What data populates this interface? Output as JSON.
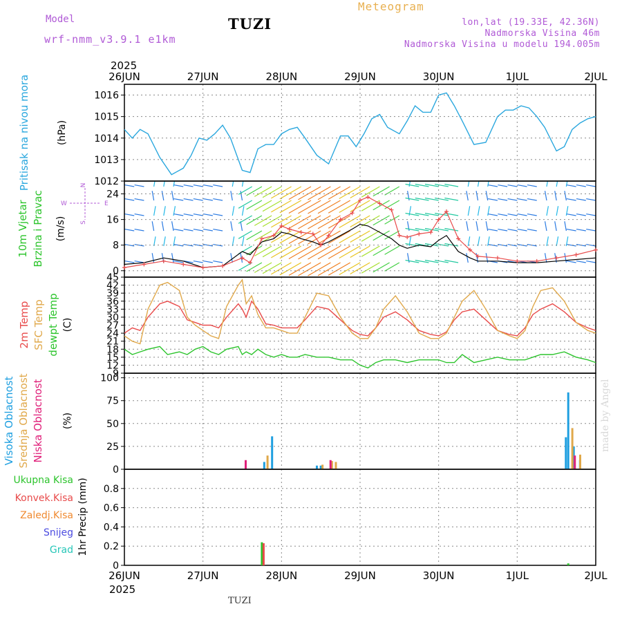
{
  "header": {
    "model_label": "Model",
    "model_name": "wrf-nmm_v3.9.1 e1km",
    "station": "TUZI",
    "app_title": "Meteogram",
    "lonlat": "lon,lat (19.33E, 42.36N)",
    "altitude": "Nadmorska Visina 46m",
    "model_altitude": "Nadmorska Visina u modelu 194.005m"
  },
  "footer": {
    "station": "TUZI",
    "made_by": "made by Angel"
  },
  "time_axis": {
    "year": "2025",
    "labels": [
      "26JUN",
      "27JUN",
      "28JUN",
      "29JUN",
      "30JUN",
      "1JUL",
      "2JUL"
    ]
  },
  "colors": {
    "pressure": "#2aa7de",
    "temp2m": "#e84a4a",
    "sfc": "#e0a84a",
    "dewpt": "#2cc42c",
    "high_cloud": "#1e9fe0",
    "mid_cloud": "#e0a84a",
    "low_cloud": "#e0207a",
    "total_precip": "#2cc42c",
    "conv_precip": "#e84a4a",
    "frozen_precip": "#f08a30",
    "snow": "#4a4ae0",
    "hail": "#26c6b8",
    "wind_label": "#2cc42c",
    "wind_unit": "#b05ad6"
  },
  "chart_data": [
    {
      "type": "line",
      "panel": "pressure",
      "ylabel_color_text": "Pritisak na nivou mora",
      "unit": "(hPa)",
      "ylim": [
        1012,
        1016.5
      ],
      "yticks": [
        1012,
        1013,
        1014,
        1015,
        1016
      ],
      "x_days": [
        0,
        0.1,
        0.2,
        0.3,
        0.45,
        0.6,
        0.75,
        0.85,
        0.95,
        1.05,
        1.15,
        1.25,
        1.35,
        1.5,
        1.6,
        1.7,
        1.8,
        1.9,
        2.0,
        2.1,
        2.2,
        2.3,
        2.45,
        2.6,
        2.75,
        2.85,
        2.95,
        3.05,
        3.15,
        3.25,
        3.35,
        3.5,
        3.6,
        3.7,
        3.8,
        3.9,
        4.0,
        4.1,
        4.2,
        4.3,
        4.45,
        4.6,
        4.75,
        4.85,
        4.95,
        5.05,
        5.15,
        5.25,
        5.35,
        5.5,
        5.6,
        5.7,
        5.8,
        5.9,
        6.0
      ],
      "series": [
        {
          "values": [
            1014.4,
            1014.0,
            1014.4,
            1014.2,
            1013.1,
            1012.3,
            1012.6,
            1013.2,
            1014.0,
            1013.9,
            1014.2,
            1014.6,
            1014.0,
            1012.5,
            1012.4,
            1013.5,
            1013.7,
            1013.7,
            1014.2,
            1014.4,
            1014.5,
            1014.0,
            1013.2,
            1012.8,
            1014.1,
            1014.1,
            1013.6,
            1014.2,
            1014.9,
            1015.1,
            1014.5,
            1014.2,
            1014.8,
            1015.5,
            1015.2,
            1015.2,
            1016.0,
            1016.1,
            1015.5,
            1014.8,
            1013.7,
            1013.8,
            1015.0,
            1015.3,
            1015.3,
            1015.5,
            1015.4,
            1015.0,
            1014.5,
            1013.4,
            1013.6,
            1014.4,
            1014.7,
            1014.9,
            1015.0
          ]
        }
      ]
    },
    {
      "type": "line",
      "panel": "wind",
      "ylabel_lines": [
        "10m Vjetar",
        "Brzina i Pravac"
      ],
      "unit": "(m/s)",
      "compass": [
        "N",
        "W",
        "E",
        "S"
      ],
      "ylim": [
        -2,
        28
      ],
      "yticks": [
        0,
        8,
        16,
        24
      ],
      "x_days": [
        0,
        0.25,
        0.5,
        0.75,
        1.0,
        1.25,
        1.5,
        1.6,
        1.75,
        1.9,
        2.0,
        2.1,
        2.25,
        2.4,
        2.5,
        2.6,
        2.75,
        2.9,
        3.0,
        3.1,
        3.25,
        3.4,
        3.5,
        3.6,
        3.75,
        3.9,
        4.0,
        4.1,
        4.25,
        4.4,
        4.5,
        4.75,
        5.0,
        5.25,
        5.5,
        5.75,
        6.0
      ],
      "series": [
        {
          "name": "speed",
          "color": "#000000",
          "values": [
            2.0,
            2.5,
            4.0,
            3.0,
            1.0,
            1.5,
            6.0,
            5.0,
            9.0,
            10.0,
            12.0,
            11.5,
            10.0,
            9.0,
            8.0,
            9.0,
            11.0,
            13.0,
            14.5,
            14.0,
            12.0,
            10.0,
            8.0,
            7.0,
            8.0,
            7.5,
            9.5,
            11.0,
            6.0,
            4.0,
            3.0,
            3.0,
            2.5,
            2.5,
            3.0,
            3.5,
            4.0
          ]
        },
        {
          "name": "gust",
          "color": "#e84a4a",
          "values": [
            1.0,
            2.0,
            3.0,
            2.0,
            1.0,
            1.5,
            4.0,
            2.5,
            10.0,
            11.0,
            14.0,
            13.0,
            12.0,
            11.5,
            8.0,
            11.0,
            16.0,
            18.0,
            22.0,
            23.0,
            21.0,
            19.0,
            11.0,
            10.5,
            11.5,
            12.0,
            16.0,
            18.5,
            10.0,
            6.5,
            4.5,
            4.0,
            3.0,
            3.0,
            4.0,
            5.0,
            6.5
          ]
        }
      ]
    },
    {
      "type": "line",
      "panel": "temperature",
      "ylabel_lines": [
        "2m Temp",
        "SFC Temp",
        "dewpt Temp"
      ],
      "unit": "(C)",
      "ylim": [
        9,
        45
      ],
      "yticks": [
        9,
        12,
        15,
        18,
        21,
        24,
        27,
        30,
        33,
        36,
        39,
        42,
        45
      ],
      "x_days": [
        0,
        0.1,
        0.2,
        0.3,
        0.45,
        0.55,
        0.7,
        0.8,
        0.9,
        1.0,
        1.1,
        1.2,
        1.3,
        1.45,
        1.5,
        1.55,
        1.62,
        1.7,
        1.8,
        1.9,
        2.0,
        2.1,
        2.2,
        2.3,
        2.45,
        2.6,
        2.75,
        2.9,
        3.0,
        3.1,
        3.2,
        3.3,
        3.45,
        3.6,
        3.75,
        3.9,
        4.0,
        4.1,
        4.2,
        4.3,
        4.45,
        4.6,
        4.75,
        4.9,
        5.0,
        5.1,
        5.2,
        5.3,
        5.45,
        5.6,
        5.75,
        5.9,
        6.0
      ],
      "series": [
        {
          "name": "2m Temp",
          "color": "#e84a4a",
          "values": [
            24,
            26,
            25,
            30,
            35,
            36,
            34,
            29,
            28,
            27,
            27,
            26,
            30,
            35,
            33,
            30,
            36,
            33,
            27.5,
            27,
            26,
            26,
            26,
            29,
            34,
            33,
            29,
            25,
            23.5,
            23,
            26,
            30,
            32,
            29,
            25,
            23.5,
            23,
            24.5,
            29,
            32,
            33,
            29,
            25,
            23.5,
            23,
            26,
            31,
            33,
            35,
            32,
            28,
            26,
            25
          ]
        },
        {
          "name": "SFC Temp",
          "color": "#e0a84a",
          "values": [
            23,
            21,
            20,
            33,
            42,
            43,
            40,
            30,
            27,
            25,
            23,
            22,
            34,
            42,
            44,
            35,
            38,
            31,
            26,
            26,
            25,
            24,
            24,
            30,
            39,
            38,
            30,
            24,
            22,
            22,
            26,
            33,
            38,
            32,
            24,
            22,
            22,
            24,
            30,
            36,
            40,
            33,
            25,
            23,
            22,
            25,
            34,
            40,
            41,
            36,
            28,
            25,
            24
          ]
        },
        {
          "name": "dewpt Temp",
          "color": "#2cc42c",
          "values": [
            18,
            16,
            17,
            18,
            19,
            16,
            17,
            16,
            18,
            19,
            17,
            16,
            18,
            19,
            16,
            17,
            16,
            18,
            16,
            15,
            16,
            15,
            15,
            16,
            15,
            15,
            14,
            14,
            12,
            11,
            13,
            14,
            14,
            13,
            14,
            14,
            14,
            13,
            13,
            16,
            13,
            14,
            15,
            14,
            14,
            14,
            15,
            16,
            16,
            17,
            15,
            14,
            13
          ]
        }
      ]
    },
    {
      "type": "bar",
      "panel": "cloud",
      "ylabel_lines": [
        "Visoka Oblacnost",
        "Srednja Oblacnost",
        "Niska Oblacnost"
      ],
      "unit": "(%)",
      "ylim": [
        0,
        105
      ],
      "yticks": [
        0,
        25,
        50,
        75,
        100
      ],
      "series": [
        {
          "name": "Visoka Oblacnost",
          "color": "#1e9fe0",
          "points": [
            [
              1.78,
              8
            ],
            [
              1.88,
              36
            ],
            [
              2.45,
              4
            ],
            [
              2.5,
              4
            ],
            [
              5.62,
              35
            ],
            [
              5.65,
              84
            ],
            [
              5.72,
              25
            ],
            [
              5.8,
              10
            ]
          ]
        },
        {
          "name": "Srednja Oblacnost",
          "color": "#e0a84a",
          "points": [
            [
              1.8,
              15
            ],
            [
              2.5,
              5
            ],
            [
              2.62,
              9
            ],
            [
              2.67,
              8
            ],
            [
              5.68,
              45
            ],
            [
              5.78,
              16
            ]
          ]
        },
        {
          "name": "Niska Oblacnost",
          "color": "#e0207a",
          "points": [
            [
              1.5,
              10
            ],
            [
              2.58,
              10
            ],
            [
              5.69,
              15
            ]
          ]
        }
      ]
    },
    {
      "type": "bar",
      "panel": "precip",
      "ylabel_lines": [
        "Ukupna Kisa",
        "Konvek.Kisa",
        "Zaledj.Kisa",
        "Snijeg",
        "Grad"
      ],
      "unit": "1hr Precip (mm)",
      "ylim": [
        0,
        1.0
      ],
      "yticks": [
        0,
        0.2,
        0.4,
        0.6,
        0.8
      ],
      "series": [
        {
          "name": "Ukupna Kisa",
          "color": "#2cc42c",
          "points": [
            [
              1.75,
              0.24
            ],
            [
              5.65,
              0.02
            ]
          ]
        },
        {
          "name": "Konvek.Kisa",
          "color": "#e84a4a",
          "points": [
            [
              1.75,
              0.23
            ]
          ]
        }
      ]
    }
  ]
}
